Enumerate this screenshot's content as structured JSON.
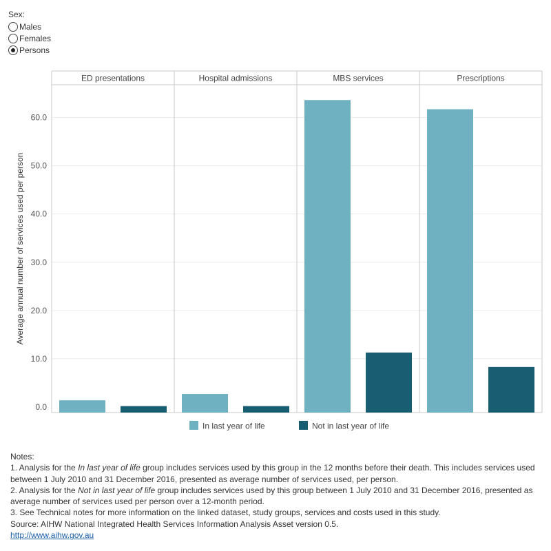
{
  "filter": {
    "label": "Sex:",
    "options": [
      {
        "label": "Males",
        "selected": false
      },
      {
        "label": "Females",
        "selected": false
      },
      {
        "label": "Persons",
        "selected": true
      }
    ]
  },
  "colors": {
    "in_last_year": "#6fb0c1",
    "not_in_last_year": "#195d72",
    "grid": "#ebebeb",
    "divider": "#c8c8c8"
  },
  "chart_data": {
    "type": "bar",
    "ylabel": "Average annual number of services used per person",
    "ylim": [
      0,
      68
    ],
    "yticks": [
      0,
      10,
      20,
      30,
      40,
      50,
      60
    ],
    "ytick_labels": [
      "0.0",
      "10.0",
      "20.0",
      "30.0",
      "40.0",
      "50.0",
      "60.0"
    ],
    "categories": [
      "ED presentations",
      "Hospital admissions",
      "MBS services",
      "Prescriptions"
    ],
    "series": [
      {
        "name": "In last year of life",
        "values": [
          1.4,
          2.7,
          63.6,
          61.7
        ]
      },
      {
        "name": "Not in last year of life",
        "values": [
          0.2,
          0.2,
          11.3,
          8.3
        ]
      }
    ],
    "legend_position": "bottom"
  },
  "notes": {
    "title": "Notes:",
    "note1_prefix": "1.  Analysis for the ",
    "note1_italic": "In last year of life",
    "note1_suffix": " group includes services used by this group in the 12 months before their death. This includes services used between 1 July 2010 and 31 December 2016, presented as average number of services used, per person.",
    "note2_prefix": "2.  Analysis for the ",
    "note2_italic": "Not in last year of life",
    "note2_suffix": " group includes services used by this group between 1 July 2010 and 31 December 2016, presented as average number of services used per person over a 12-month period.",
    "note3": "3.  See Technical notes for more information on the linked dataset, study groups, services and costs used in this study.",
    "source": "Source: AIHW National Integrated Health Services Information Analysis Asset version 0.5.",
    "link": "http://www.aihw.gov.au"
  }
}
